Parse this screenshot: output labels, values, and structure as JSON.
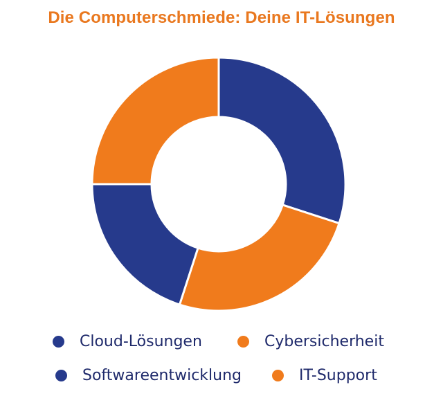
{
  "colors": {
    "blue": "#263a8c",
    "orange": "#f07b1c",
    "title": "#e9781f",
    "legend_text": "#1f2a6b"
  },
  "chart_data": {
    "type": "pie",
    "variant": "donut",
    "title": "Die Computerschmiede: Deine IT-Lösungen",
    "series": [
      {
        "name": "Cloud-Lösungen",
        "value": 30,
        "color": "#263a8c"
      },
      {
        "name": "Cybersicherheit",
        "value": 25,
        "color": "#f07b1c"
      },
      {
        "name": "Softwareentwicklung",
        "value": 20,
        "color": "#263a8c"
      },
      {
        "name": "IT-Support",
        "value": 25,
        "color": "#f07b1c"
      }
    ],
    "legend_position": "bottom"
  }
}
